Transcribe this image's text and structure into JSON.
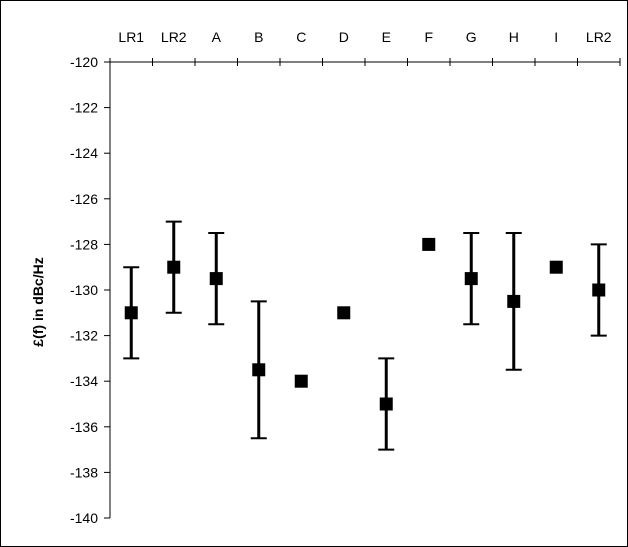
{
  "chart_data": {
    "type": "scatter",
    "title": "",
    "xlabel": "",
    "ylabel": "£(f) in dBc/Hz",
    "ylim": [
      -140,
      -120
    ],
    "yticks": [
      -120,
      -122,
      -124,
      -126,
      -128,
      -130,
      -132,
      -134,
      -136,
      -138,
      -140
    ],
    "x_axis_position": "top",
    "grid": false,
    "legend": "none",
    "categories": [
      "LR1",
      "LR2",
      "A",
      "B",
      "C",
      "D",
      "E",
      "F",
      "G",
      "H",
      "I",
      "LR2"
    ],
    "values": [
      -131,
      -129,
      -129.5,
      -133.5,
      -134,
      -131,
      -135,
      -128,
      -129.5,
      -130.5,
      -129,
      -130
    ],
    "error_low": [
      -133,
      -131,
      -131.5,
      -136.5,
      -134,
      -131,
      -137,
      -128,
      -131.5,
      -133.5,
      -129,
      -132
    ],
    "error_high": [
      -129,
      -127,
      -127.5,
      -130.5,
      -134,
      -131,
      -133,
      -128,
      -127.5,
      -127.5,
      -129,
      -128
    ],
    "marker": "square",
    "color": "#000000"
  }
}
